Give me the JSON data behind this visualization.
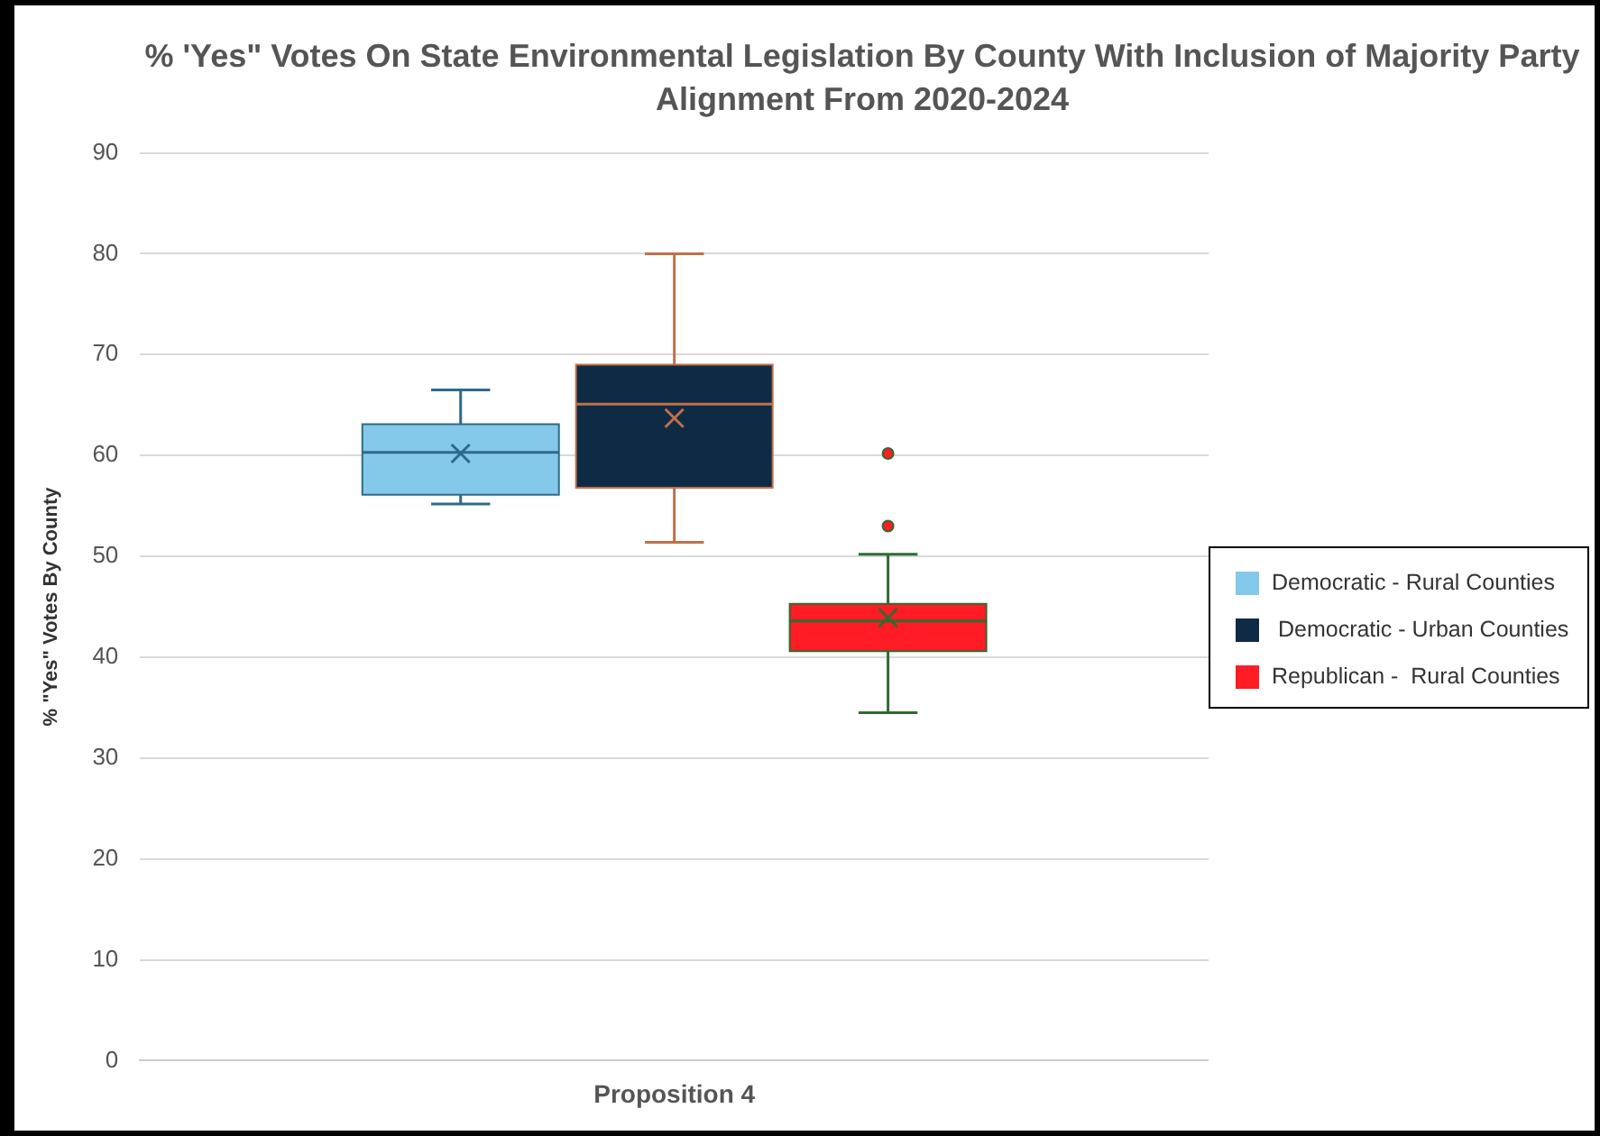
{
  "chart_data": {
    "type": "box",
    "title": "% 'Yes\" Votes On State Environmental Legislation By County With Inclusion of Majority Party Alignment From 2020-2024",
    "ylabel": "% \"Yes\" Votes By County",
    "categories": [
      "Proposition 4"
    ],
    "ylim": [
      0,
      90
    ],
    "yticks": [
      0,
      10,
      20,
      30,
      40,
      50,
      60,
      70,
      80,
      90
    ],
    "grid": "y",
    "legend": "right",
    "series": [
      {
        "name": "Democratic - Rural Counties",
        "color": "#84c8ea",
        "boxes": [
          {
            "low": 55.2,
            "q1": 56.1,
            "median": 60.3,
            "q3": 63.1,
            "high": 66.5,
            "mean": 60.2
          }
        ]
      },
      {
        "name": " Democratic - Urban Counties",
        "color": "#0e2a45",
        "boxes": [
          {
            "low": 51.4,
            "q1": 56.8,
            "median": 65.1,
            "q3": 69.0,
            "high": 80,
            "mean": 63.7
          }
        ]
      },
      {
        "name": "Republican -  Rural Counties",
        "color": "#ff1c24",
        "boxes": [
          {
            "low": 34.5,
            "q1": 40.6,
            "median": 43.6,
            "q3": 45.3,
            "high": 50.2,
            "mean": 43.9,
            "outliers": [
              60.2,
              53.0
            ]
          }
        ]
      }
    ]
  }
}
